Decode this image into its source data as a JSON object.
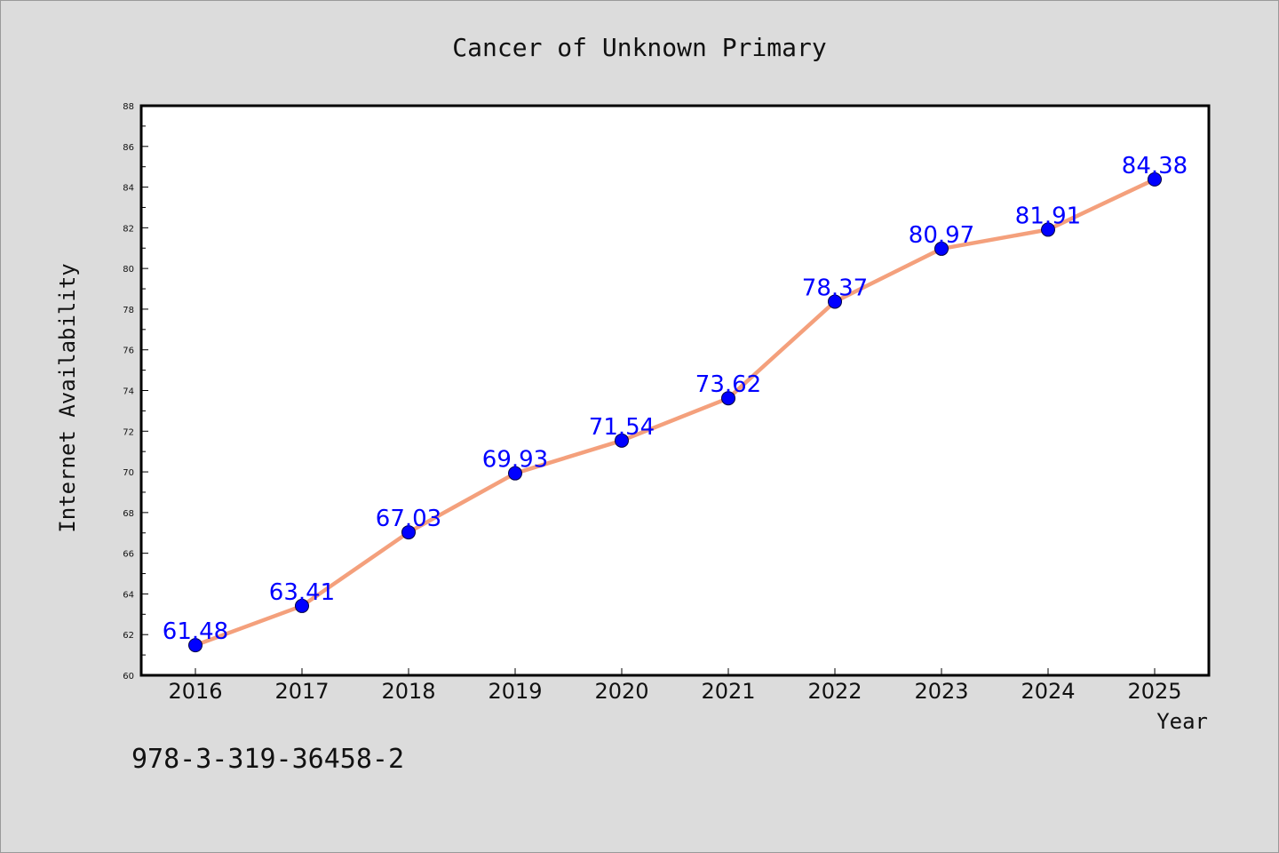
{
  "chart_data": {
    "type": "line",
    "title": "Cancer of Unknown Primary",
    "xlabel": "Year",
    "ylabel": "Internet Availability",
    "categories": [
      "2016",
      "2017",
      "2018",
      "2019",
      "2020",
      "2021",
      "2022",
      "2023",
      "2024",
      "2025"
    ],
    "values": [
      61.48,
      63.41,
      67.03,
      69.93,
      71.54,
      73.62,
      78.37,
      80.97,
      81.91,
      84.38
    ],
    "data_labels": [
      "61.48",
      "63.41",
      "67.03",
      "69.93",
      "71.54",
      "73.62",
      "78.37",
      "80.97",
      "81.91",
      "84.38"
    ],
    "ylim": [
      60,
      88
    ],
    "yticks": [
      "60",
      "62",
      "64",
      "66",
      "68",
      "70",
      "72",
      "74",
      "76",
      "78",
      "80",
      "82",
      "84",
      "86",
      "88"
    ],
    "grid": false,
    "line_color": "#f4a07c",
    "marker_color": "#0000ff",
    "label_color": "#0000ff"
  },
  "footnote": "978-3-319-36458-2"
}
